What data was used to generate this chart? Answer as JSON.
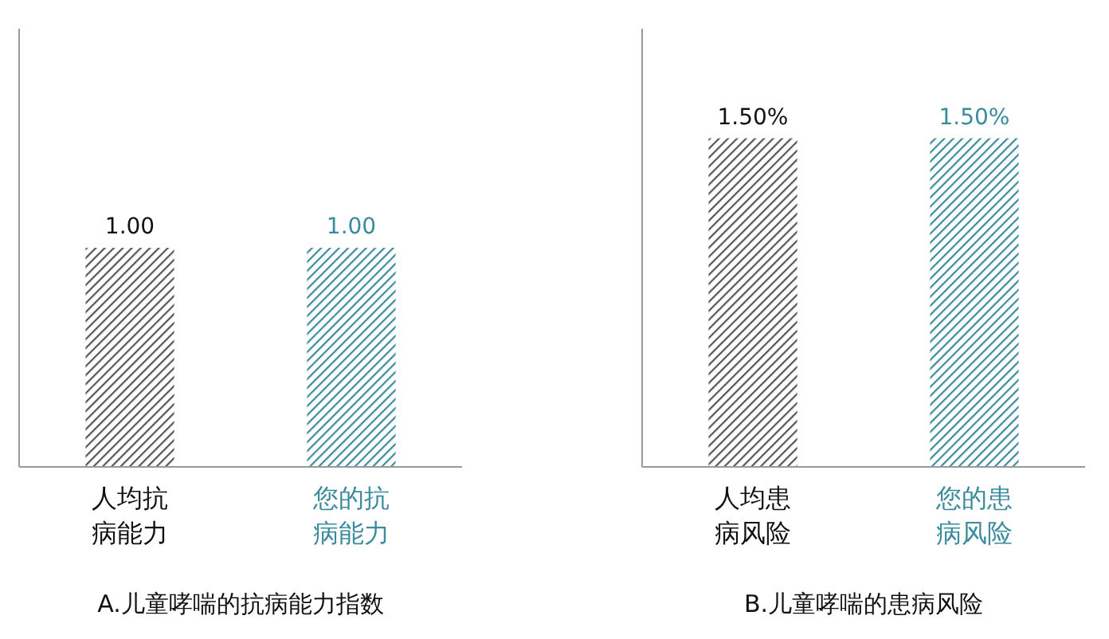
{
  "chart_data": [
    {
      "type": "bar",
      "title": "A.儿童哮喘的抗病能力指数",
      "categories": [
        "人均抗病能力",
        "您的抗病能力"
      ],
      "values": [
        1.0,
        1.0
      ],
      "colors": [
        "#555555",
        "#3a8c9c"
      ],
      "value_labels": [
        "1.00",
        "1.00"
      ],
      "ylim": [
        0,
        2
      ]
    },
    {
      "type": "bar",
      "title": "B.儿童哮喘的患病风险",
      "categories": [
        "人均患病风险",
        "您的患病风险"
      ],
      "values": [
        1.5,
        1.5
      ],
      "colors": [
        "#555555",
        "#3a8c9c"
      ],
      "value_labels": [
        "1.50%",
        "1.50%"
      ],
      "ylim": [
        0,
        2
      ]
    }
  ]
}
